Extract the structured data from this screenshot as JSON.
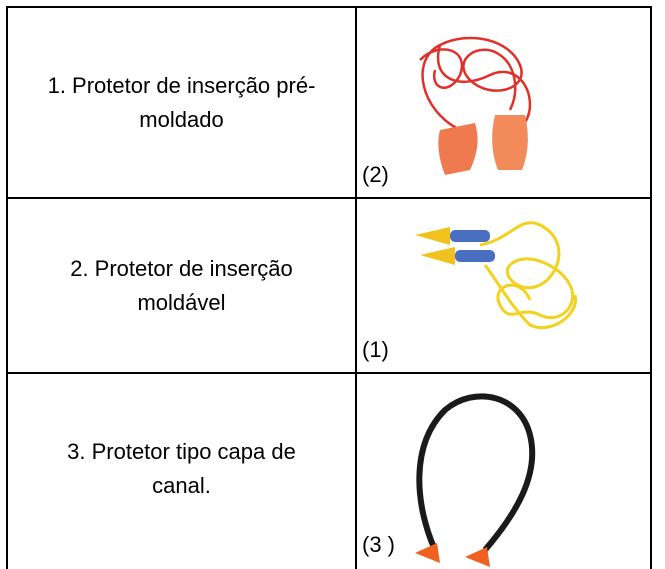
{
  "table": {
    "rows": [
      [
        "1. Protetor de inserção pré-moldado",
        "(2)"
      ],
      [
        "2. Protetor de inserção moldável",
        "(1)"
      ],
      [
        "3. Protetor tipo capa de canal.",
        "(3 )"
      ]
    ]
  }
}
